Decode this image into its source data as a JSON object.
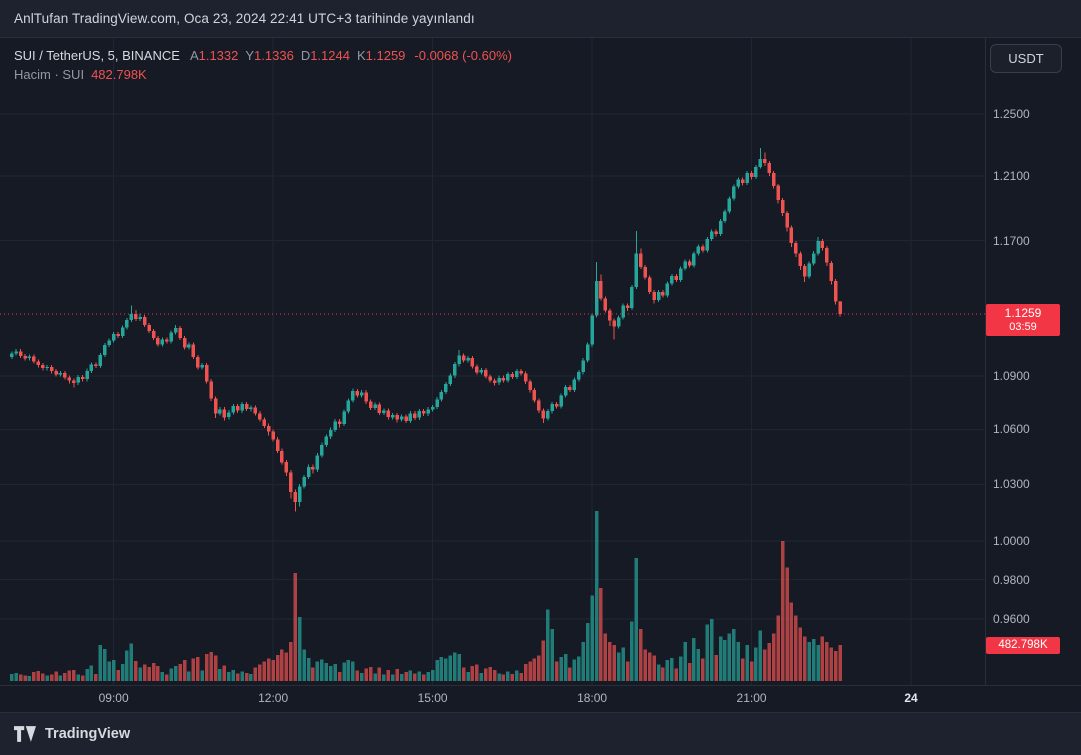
{
  "top_bar": {
    "publish_text": "AnlTufan TradingView.com, Oca 23, 2024 22:41 UTC+3 tarihinde yayınlandı"
  },
  "legend": {
    "symbol_title": "SUI / TetherUS, 5, BINANCE",
    "ohlc": [
      {
        "label": "A",
        "value": "1.1332"
      },
      {
        "label": "Y",
        "value": "1.1336"
      },
      {
        "label": "D",
        "value": "1.1244"
      },
      {
        "label": "K",
        "value": "1.1259"
      }
    ],
    "change": "-0.0068 (-0.60%)",
    "volume_label": "Hacim · SUI",
    "volume_value": "482.798K"
  },
  "currency_button": {
    "label": "USDT"
  },
  "price_axis": {
    "last_price_badge": {
      "price": "1.1259",
      "countdown": "03:59"
    },
    "volume_badge": "482.798K"
  },
  "footer": {
    "brand": "TradingView"
  },
  "colors": {
    "up": "#26a69a",
    "down": "#ef5350",
    "accent_red": "#f23645",
    "axis_text": "#b2b5be",
    "background": "#151a25"
  },
  "chart_data": {
    "type": "candlestick+volume",
    "symbol": "SUI / TetherUS",
    "exchange": "BINANCE",
    "interval": "5",
    "scale": "log",
    "last_price": 1.1259,
    "last_change": "-0.0068 (-0.60%)",
    "last_volume_k": 482.798,
    "yticks": [
      "1.2500",
      "1.2100",
      "1.1700",
      "1.0900",
      "1.0600",
      "1.0300",
      "1.0000",
      "0.9800",
      "0.9600"
    ],
    "xticks": [
      "09:00",
      "12:00",
      "15:00",
      "18:00",
      "21:00",
      "24"
    ],
    "candles": [
      [
        1.101,
        1.1042,
        1.0998,
        1.103,
        95
      ],
      [
        1.103,
        1.1055,
        1.1018,
        1.1042,
        110
      ],
      [
        1.1042,
        1.1054,
        1.1003,
        1.1015,
        88
      ],
      [
        1.1015,
        1.1027,
        1.099,
        1.1002,
        76
      ],
      [
        1.1002,
        1.1024,
        1.099,
        1.1012,
        69
      ],
      [
        1.1012,
        1.1024,
        1.0972,
        1.0984,
        120
      ],
      [
        1.0984,
        1.0996,
        1.095,
        1.0962,
        135
      ],
      [
        1.0962,
        1.0974,
        1.0933,
        1.0945,
        98
      ],
      [
        1.0945,
        1.0964,
        1.0933,
        1.0952,
        72
      ],
      [
        1.0952,
        1.0964,
        1.0916,
        1.0928,
        85
      ],
      [
        1.0928,
        1.094,
        1.0898,
        1.091,
        130
      ],
      [
        1.091,
        1.093,
        1.0898,
        1.0918,
        77
      ],
      [
        1.0918,
        1.093,
        1.088,
        1.0892,
        105
      ],
      [
        1.0892,
        1.0904,
        1.0858,
        1.0875,
        140
      ],
      [
        1.0875,
        1.0887,
        1.0836,
        1.0862,
        150
      ],
      [
        1.0862,
        1.0907,
        1.085,
        1.0895,
        90
      ],
      [
        1.0895,
        1.0907,
        1.087,
        1.0882,
        75
      ],
      [
        1.0882,
        1.0942,
        1.087,
        1.093,
        160
      ],
      [
        1.093,
        1.0977,
        1.0918,
        1.0965,
        210
      ],
      [
        1.0965,
        1.0977,
        1.0946,
        1.0958,
        95
      ],
      [
        1.0958,
        1.1032,
        1.0946,
        1.102,
        480
      ],
      [
        1.102,
        1.109,
        1.1008,
        1.1078,
        430
      ],
      [
        1.1078,
        1.1117,
        1.1066,
        1.1105,
        260
      ],
      [
        1.1105,
        1.1154,
        1.1093,
        1.1142,
        280
      ],
      [
        1.1142,
        1.1154,
        1.1118,
        1.113,
        150
      ],
      [
        1.113,
        1.1192,
        1.1118,
        1.118,
        230
      ],
      [
        1.118,
        1.1237,
        1.1168,
        1.1225,
        410
      ],
      [
        1.1225,
        1.131,
        1.1213,
        1.1258,
        500
      ],
      [
        1.1258,
        1.1282,
        1.1218,
        1.123,
        270
      ],
      [
        1.123,
        1.1262,
        1.1218,
        1.1242,
        180
      ],
      [
        1.1242,
        1.1254,
        1.1183,
        1.1195,
        220
      ],
      [
        1.1195,
        1.1207,
        1.1148,
        1.116,
        190
      ],
      [
        1.116,
        1.1172,
        1.1106,
        1.1118,
        240
      ],
      [
        1.1118,
        1.113,
        1.107,
        1.1082,
        200
      ],
      [
        1.1082,
        1.1122,
        1.107,
        1.111,
        120
      ],
      [
        1.111,
        1.1122,
        1.1086,
        1.1098,
        90
      ],
      [
        1.1098,
        1.1162,
        1.1086,
        1.115,
        170
      ],
      [
        1.115,
        1.1196,
        1.1138,
        1.1178,
        200
      ],
      [
        1.1178,
        1.119,
        1.1108,
        1.112,
        230
      ],
      [
        1.112,
        1.1132,
        1.1053,
        1.1065,
        280
      ],
      [
        1.1065,
        1.1092,
        1.1053,
        1.108,
        130
      ],
      [
        1.108,
        1.1092,
        1.0998,
        1.101,
        300
      ],
      [
        1.101,
        1.1022,
        1.0938,
        1.095,
        320
      ],
      [
        1.095,
        1.0974,
        1.0938,
        1.0962,
        140
      ],
      [
        1.0962,
        1.0974,
        1.0858,
        1.087,
        360
      ],
      [
        1.087,
        1.0882,
        1.076,
        1.0772,
        390
      ],
      [
        1.0772,
        1.0784,
        1.0665,
        1.069,
        340
      ],
      [
        1.069,
        1.0724,
        1.0678,
        1.0712,
        160
      ],
      [
        1.0712,
        1.0724,
        1.065,
        1.0668,
        210
      ],
      [
        1.0668,
        1.0707,
        1.0656,
        1.0695,
        120
      ],
      [
        1.0695,
        1.0742,
        1.0683,
        1.073,
        150
      ],
      [
        1.073,
        1.0742,
        1.0693,
        1.0705,
        100
      ],
      [
        1.0705,
        1.0754,
        1.0693,
        1.0742,
        130
      ],
      [
        1.0742,
        1.0754,
        1.0703,
        1.0715,
        110
      ],
      [
        1.0715,
        1.0734,
        1.07,
        1.0722,
        95
      ],
      [
        1.0722,
        1.0734,
        1.0678,
        1.069,
        180
      ],
      [
        1.069,
        1.0702,
        1.0643,
        1.0655,
        220
      ],
      [
        1.0655,
        1.0667,
        1.0608,
        1.062,
        260
      ],
      [
        1.062,
        1.0632,
        1.0566,
        1.0588,
        300
      ],
      [
        1.0588,
        1.06,
        1.0533,
        1.0545,
        280
      ],
      [
        1.0545,
        1.0557,
        1.047,
        1.0482,
        350
      ],
      [
        1.0482,
        1.0494,
        1.0408,
        1.042,
        420
      ],
      [
        1.042,
        1.0432,
        1.0345,
        1.0365,
        380
      ],
      [
        1.0365,
        1.0377,
        1.0225,
        1.026,
        520
      ],
      [
        1.026,
        1.0272,
        1.0155,
        1.0205,
        1450
      ],
      [
        1.0205,
        1.0302,
        1.0182,
        1.029,
        860
      ],
      [
        1.029,
        1.0352,
        1.0278,
        1.034,
        420
      ],
      [
        1.034,
        1.0407,
        1.0328,
        1.0395,
        310
      ],
      [
        1.0395,
        1.0407,
        1.036,
        1.038,
        180
      ],
      [
        1.038,
        1.047,
        1.0368,
        1.0458,
        260
      ],
      [
        1.0458,
        1.0527,
        1.0446,
        1.0515,
        290
      ],
      [
        1.0515,
        1.0572,
        1.0503,
        1.056,
        240
      ],
      [
        1.056,
        1.061,
        1.0548,
        1.0598,
        200
      ],
      [
        1.0598,
        1.0657,
        1.0586,
        1.0645,
        230
      ],
      [
        1.0645,
        1.0657,
        1.0612,
        1.063,
        120
      ],
      [
        1.063,
        1.0712,
        1.0618,
        1.07,
        250
      ],
      [
        1.07,
        1.0774,
        1.0688,
        1.0762,
        280
      ],
      [
        1.0762,
        1.083,
        1.075,
        1.0815,
        260
      ],
      [
        1.0815,
        1.0827,
        1.0778,
        1.079,
        140
      ],
      [
        1.079,
        1.0822,
        1.0778,
        1.0808,
        110
      ],
      [
        1.0808,
        1.082,
        1.0743,
        1.0755,
        170
      ],
      [
        1.0755,
        1.0767,
        1.0708,
        1.072,
        190
      ],
      [
        1.072,
        1.075,
        1.0708,
        1.0738,
        100
      ],
      [
        1.0738,
        1.075,
        1.068,
        1.0692,
        180
      ],
      [
        1.0692,
        1.0717,
        1.068,
        1.0705,
        90
      ],
      [
        1.0705,
        1.0717,
        1.0656,
        1.0668,
        150
      ],
      [
        1.0668,
        1.0692,
        1.0656,
        1.068,
        85
      ],
      [
        1.068,
        1.0692,
        1.064,
        1.0655,
        160
      ],
      [
        1.0655,
        1.0684,
        1.0643,
        1.0672,
        95
      ],
      [
        1.0672,
        1.0684,
        1.0636,
        1.0648,
        120
      ],
      [
        1.0648,
        1.0702,
        1.0636,
        1.069,
        140
      ],
      [
        1.069,
        1.0702,
        1.0653,
        1.0665,
        100
      ],
      [
        1.0665,
        1.0714,
        1.0653,
        1.0702,
        130
      ],
      [
        1.0702,
        1.0714,
        1.0676,
        1.0688,
        90
      ],
      [
        1.0688,
        1.0724,
        1.0676,
        1.0712,
        120
      ],
      [
        1.0712,
        1.0737,
        1.07,
        1.0725,
        150
      ],
      [
        1.0725,
        1.078,
        1.0713,
        1.0768,
        280
      ],
      [
        1.0768,
        1.0822,
        1.0756,
        1.081,
        320
      ],
      [
        1.081,
        1.0867,
        1.0798,
        1.0855,
        300
      ],
      [
        1.0855,
        1.0914,
        1.0843,
        1.0902,
        340
      ],
      [
        1.0902,
        1.098,
        1.089,
        1.0968,
        380
      ],
      [
        1.0968,
        1.105,
        1.0956,
        1.1018,
        360
      ],
      [
        1.1018,
        1.103,
        1.0978,
        1.099,
        180
      ],
      [
        1.099,
        1.1014,
        1.0978,
        1.1002,
        120
      ],
      [
        1.1002,
        1.1014,
        1.0943,
        1.0955,
        200
      ],
      [
        1.0955,
        1.0967,
        1.0908,
        1.092,
        220
      ],
      [
        1.092,
        1.0947,
        1.0908,
        1.0935,
        110
      ],
      [
        1.0935,
        1.0947,
        1.0886,
        1.0898,
        170
      ],
      [
        1.0898,
        1.091,
        1.0863,
        1.0875,
        190
      ],
      [
        1.0875,
        1.0887,
        1.0845,
        1.0862,
        150
      ],
      [
        1.0862,
        1.0902,
        1.085,
        1.089,
        100
      ],
      [
        1.089,
        1.0902,
        1.0863,
        1.0875,
        85
      ],
      [
        1.0875,
        1.0924,
        1.0863,
        1.0912,
        130
      ],
      [
        1.0912,
        1.0924,
        1.0883,
        1.0895,
        95
      ],
      [
        1.0895,
        1.094,
        1.0883,
        1.0928,
        140
      ],
      [
        1.0928,
        1.094,
        1.0903,
        1.0915,
        110
      ],
      [
        1.0915,
        1.0927,
        1.0856,
        1.0868,
        230
      ],
      [
        1.0868,
        1.088,
        1.0808,
        1.082,
        260
      ],
      [
        1.082,
        1.0832,
        1.075,
        1.0762,
        300
      ],
      [
        1.0762,
        1.0774,
        1.0693,
        1.0705,
        340
      ],
      [
        1.0705,
        1.0717,
        1.0635,
        1.0662,
        540
      ],
      [
        1.0662,
        1.0714,
        1.065,
        1.0702,
        960
      ],
      [
        1.0702,
        1.0754,
        1.069,
        1.0742,
        700
      ],
      [
        1.0742,
        1.0754,
        1.0716,
        1.0728,
        260
      ],
      [
        1.0728,
        1.0802,
        1.0716,
        1.079,
        320
      ],
      [
        1.079,
        1.085,
        1.0778,
        1.0838,
        360
      ],
      [
        1.0838,
        1.085,
        1.081,
        1.0822,
        180
      ],
      [
        1.0822,
        1.0892,
        1.081,
        1.088,
        290
      ],
      [
        1.088,
        1.0934,
        1.0868,
        1.0922,
        330
      ],
      [
        1.0922,
        1.1002,
        1.091,
        1.099,
        520
      ],
      [
        1.099,
        1.1092,
        1.0978,
        1.108,
        780
      ],
      [
        1.108,
        1.1262,
        1.1068,
        1.125,
        1150
      ],
      [
        1.125,
        1.157,
        1.1238,
        1.1455,
        2280
      ],
      [
        1.1455,
        1.1495,
        1.1338,
        1.135,
        1250
      ],
      [
        1.135,
        1.1362,
        1.1268,
        1.128,
        640
      ],
      [
        1.128,
        1.1292,
        1.119,
        1.122,
        520
      ],
      [
        1.122,
        1.1232,
        1.111,
        1.1185,
        480
      ],
      [
        1.1185,
        1.1252,
        1.1173,
        1.124,
        380
      ],
      [
        1.124,
        1.1322,
        1.1228,
        1.131,
        450
      ],
      [
        1.131,
        1.1322,
        1.1278,
        1.1295,
        260
      ],
      [
        1.1295,
        1.1432,
        1.1283,
        1.142,
        800
      ],
      [
        1.142,
        1.176,
        1.1408,
        1.162,
        1650
      ],
      [
        1.162,
        1.165,
        1.1528,
        1.154,
        700
      ],
      [
        1.154,
        1.1552,
        1.1463,
        1.1475,
        420
      ],
      [
        1.1475,
        1.1487,
        1.1378,
        1.139,
        380
      ],
      [
        1.139,
        1.1402,
        1.1322,
        1.1342,
        340
      ],
      [
        1.1342,
        1.1402,
        1.133,
        1.139,
        220
      ],
      [
        1.139,
        1.1402,
        1.1356,
        1.1368,
        180
      ],
      [
        1.1368,
        1.1452,
        1.1356,
        1.144,
        280
      ],
      [
        1.144,
        1.1497,
        1.1428,
        1.1485,
        310
      ],
      [
        1.1485,
        1.1497,
        1.145,
        1.1462,
        170
      ],
      [
        1.1462,
        1.1542,
        1.145,
        1.153,
        330
      ],
      [
        1.153,
        1.1584,
        1.1518,
        1.1572,
        520
      ],
      [
        1.1572,
        1.1584,
        1.1536,
        1.1548,
        240
      ],
      [
        1.1548,
        1.1632,
        1.1536,
        1.162,
        580
      ],
      [
        1.162,
        1.1677,
        1.1608,
        1.1665,
        430
      ],
      [
        1.1665,
        1.1677,
        1.1628,
        1.164,
        300
      ],
      [
        1.164,
        1.1722,
        1.1628,
        1.171,
        760
      ],
      [
        1.171,
        1.1767,
        1.1698,
        1.1755,
        830
      ],
      [
        1.1755,
        1.1767,
        1.1725,
        1.174,
        350
      ],
      [
        1.174,
        1.1832,
        1.1728,
        1.182,
        600
      ],
      [
        1.182,
        1.1892,
        1.1808,
        1.188,
        550
      ],
      [
        1.188,
        1.1972,
        1.1868,
        1.196,
        640
      ],
      [
        1.196,
        1.2047,
        1.1948,
        1.2035,
        700
      ],
      [
        1.2035,
        1.2092,
        1.2023,
        1.208,
        520
      ],
      [
        1.208,
        1.2092,
        1.204,
        1.2058,
        300
      ],
      [
        1.2058,
        1.2132,
        1.2046,
        1.212,
        480
      ],
      [
        1.212,
        1.2132,
        1.2078,
        1.2095,
        260
      ],
      [
        1.2095,
        1.2172,
        1.2083,
        1.216,
        450
      ],
      [
        1.216,
        1.228,
        1.2148,
        1.221,
        680
      ],
      [
        1.221,
        1.2252,
        1.2165,
        1.2185,
        420
      ],
      [
        1.2185,
        1.2197,
        1.21,
        1.212,
        510
      ],
      [
        1.212,
        1.2132,
        1.2022,
        1.204,
        640
      ],
      [
        1.204,
        1.2052,
        1.193,
        1.195,
        880
      ],
      [
        1.195,
        1.1962,
        1.185,
        1.187,
        1880
      ],
      [
        1.187,
        1.1882,
        1.1755,
        1.178,
        1520
      ],
      [
        1.178,
        1.1792,
        1.1662,
        1.1685,
        1050
      ],
      [
        1.1685,
        1.1697,
        1.16,
        1.162,
        880
      ],
      [
        1.162,
        1.1632,
        1.1522,
        1.1545,
        720
      ],
      [
        1.1545,
        1.1557,
        1.1448,
        1.1482,
        600
      ],
      [
        1.1482,
        1.1572,
        1.147,
        1.156,
        520
      ],
      [
        1.156,
        1.1635,
        1.1548,
        1.162,
        560
      ],
      [
        1.162,
        1.1722,
        1.1608,
        1.1698,
        480
      ],
      [
        1.1698,
        1.171,
        1.1638,
        1.1655,
        600
      ],
      [
        1.1655,
        1.1667,
        1.1545,
        1.1565,
        520
      ],
      [
        1.1565,
        1.1577,
        1.1435,
        1.1455,
        450
      ],
      [
        1.1455,
        1.1467,
        1.1315,
        1.1332,
        400
      ],
      [
        1.1332,
        1.1336,
        1.1244,
        1.1259,
        482.798
      ]
    ]
  }
}
